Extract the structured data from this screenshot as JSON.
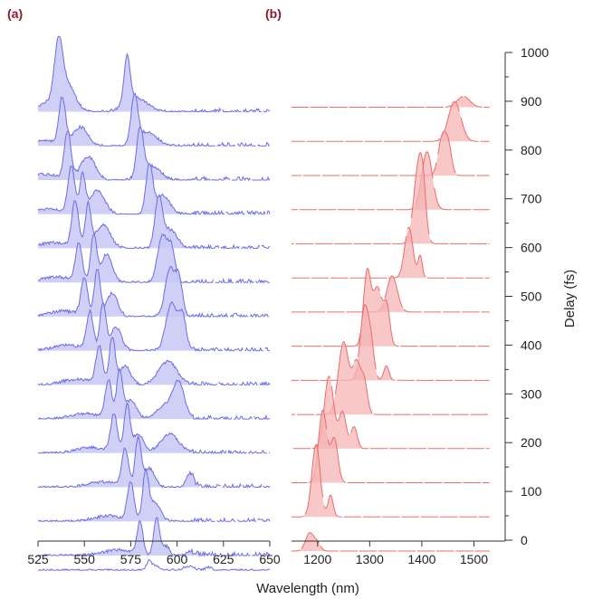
{
  "colors": {
    "panel_label": "#8b1a2b",
    "blue_line": "#6b6bea",
    "blue_fill": "#c8c8f4",
    "red_line": "#ec6b6b",
    "red_fill": "#f6b4b4",
    "axis": "#333333"
  },
  "panel_labels": {
    "a": "(a)",
    "b": "(b)"
  },
  "chart_data": [
    {
      "type": "area",
      "panel": "(a)",
      "title": "",
      "xlabel": "",
      "x_ticks": [
        "525",
        "550",
        "575",
        "600",
        "625",
        "650"
      ],
      "xlim": [
        525,
        650
      ],
      "delays_fs": [
        0,
        70,
        140,
        210,
        280,
        350,
        420,
        490,
        560,
        630,
        700,
        770,
        840,
        910
      ],
      "series": [
        {
          "delay": 910,
          "peaks": [
            [
              536,
              2.0,
              1.0
            ],
            [
              539,
              5.0,
              0.7
            ],
            [
              573,
              1.6,
              1.0
            ],
            [
              578,
              6.0,
              0.3
            ]
          ]
        },
        {
          "delay": 840,
          "peaks": [
            [
              538,
              1.8,
              1.0
            ],
            [
              548,
              4.0,
              0.4
            ],
            [
              577,
              1.8,
              1.0
            ],
            [
              584,
              5.0,
              0.3
            ]
          ]
        },
        {
          "delay": 770,
          "peaks": [
            [
              541,
              1.8,
              1.0
            ],
            [
              552,
              4.0,
              0.5
            ],
            [
              580,
              1.8,
              1.0
            ],
            [
              586,
              5.0,
              0.3
            ]
          ]
        },
        {
          "delay": 700,
          "peaks": [
            [
              543,
              1.8,
              1.0
            ],
            [
              549,
              1.5,
              0.8
            ],
            [
              557,
              4.0,
              0.5
            ],
            [
              585,
              1.8,
              1.0
            ],
            [
              592,
              4.0,
              0.4
            ]
          ]
        },
        {
          "delay": 630,
          "peaks": [
            [
              545,
              1.8,
              1.0
            ],
            [
              552,
              1.5,
              0.9
            ],
            [
              560,
              4.0,
              0.5
            ],
            [
              590,
              2.0,
              1.0
            ],
            [
              596,
              4.0,
              0.4
            ]
          ]
        },
        {
          "delay": 560,
          "peaks": [
            [
              547,
              1.8,
              0.8
            ],
            [
              555,
              1.6,
              1.0
            ],
            [
              562,
              3.0,
              0.6
            ],
            [
              592,
              2.5,
              1.0
            ],
            [
              597,
              2.0,
              0.7
            ]
          ]
        },
        {
          "delay": 490,
          "peaks": [
            [
              550,
              1.8,
              0.8
            ],
            [
              557,
              1.6,
              1.0
            ],
            [
              565,
              3.0,
              0.5
            ],
            [
              596,
              2.5,
              1.0
            ],
            [
              601,
              2.0,
              0.8
            ]
          ]
        },
        {
          "delay": 420,
          "peaks": [
            [
              553,
              1.8,
              0.8
            ],
            [
              560,
              1.6,
              1.0
            ],
            [
              567,
              3.0,
              0.5
            ],
            [
              597,
              3.0,
              1.0
            ],
            [
              603,
              2.0,
              0.7
            ]
          ]
        },
        {
          "delay": 350,
          "peaks": [
            [
              558,
              1.8,
              0.8
            ],
            [
              565,
              1.6,
              1.0
            ],
            [
              572,
              3.0,
              0.4
            ],
            [
              595,
              5.0,
              0.5
            ]
          ]
        },
        {
          "delay": 280,
          "peaks": [
            [
              563,
              1.8,
              0.8
            ],
            [
              569,
              1.6,
              1.0
            ],
            [
              575,
              3.0,
              0.4
            ],
            [
              601,
              3.0,
              0.7
            ],
            [
              594,
              5.0,
              0.3
            ]
          ]
        },
        {
          "delay": 210,
          "peaks": [
            [
              566,
              1.8,
              0.8
            ],
            [
              573,
              1.6,
              1.0
            ],
            [
              579,
              3.0,
              0.4
            ],
            [
              596,
              5.0,
              0.4
            ]
          ]
        },
        {
          "delay": 140,
          "peaks": [
            [
              572,
              1.8,
              0.8
            ],
            [
              579,
              1.6,
              1.0
            ],
            [
              585,
              3.0,
              0.4
            ],
            [
              607,
              2.0,
              0.3
            ]
          ]
        },
        {
          "delay": 70,
          "peaks": [
            [
              575,
              1.8,
              0.8
            ],
            [
              583,
              1.6,
              1.0
            ],
            [
              588,
              3.0,
              0.4
            ]
          ]
        },
        {
          "delay": 0,
          "peaks": [
            [
              580,
              1.6,
              0.7
            ],
            [
              589,
              1.6,
              0.8
            ],
            [
              594,
              2.0,
              0.2
            ],
            [
              608,
              3.0,
              0.1
            ]
          ]
        }
      ],
      "baseline_curve": {
        "delay": -30,
        "peaks": [
          [
            585,
            1.5,
            0.2
          ],
          [
            589,
            1.5,
            0.1
          ],
          [
            606,
            3.0,
            0.08
          ],
          [
            617,
            2.0,
            0.06
          ]
        ]
      }
    },
    {
      "type": "area",
      "panel": "(b)",
      "title": "",
      "xlabel": "Wavelength (nm)",
      "ylabel": "Delay (fs)",
      "x_ticks": [
        "1200",
        "1300",
        "1400",
        "1500"
      ],
      "xlim": [
        1150,
        1560
      ],
      "y_ticks": [
        "0",
        "100",
        "200",
        "300",
        "400",
        "500",
        "600",
        "700",
        "800",
        "900",
        "1000"
      ],
      "ylim": [
        0,
        1000
      ],
      "series": [
        {
          "delay": 910,
          "peaks": [
            [
              1480,
              12,
              0.15
            ]
          ]
        },
        {
          "delay": 840,
          "peaks": [
            [
              1463,
              12,
              0.55
            ]
          ]
        },
        {
          "delay": 770,
          "peaks": [
            [
              1440,
              8,
              0.55
            ],
            [
              1452,
              6,
              0.3
            ]
          ]
        },
        {
          "delay": 700,
          "peaks": [
            [
              1410,
              10,
              0.8
            ]
          ]
        },
        {
          "delay": 630,
          "peaks": [
            [
              1393,
              9,
              1.0
            ],
            [
              1402,
              6,
              0.5
            ]
          ]
        },
        {
          "delay": 560,
          "peaks": [
            [
              1375,
              8,
              0.7
            ],
            [
              1397,
              4,
              0.3
            ]
          ]
        },
        {
          "delay": 490,
          "peaks": [
            [
              1343,
              10,
              0.5
            ]
          ]
        },
        {
          "delay": 420,
          "peaks": [
            [
              1295,
              7,
              1.0
            ],
            [
              1315,
              9,
              0.8
            ],
            [
              1333,
              6,
              0.5
            ]
          ]
        },
        {
          "delay": 350,
          "peaks": [
            [
              1290,
              8,
              1.0
            ],
            [
              1303,
              6,
              0.4
            ],
            [
              1332,
              5,
              0.2
            ]
          ]
        },
        {
          "delay": 280,
          "peaks": [
            [
              1250,
              10,
              1.0
            ],
            [
              1275,
              8,
              0.7
            ],
            [
              1290,
              6,
              0.4
            ]
          ]
        },
        {
          "delay": 210,
          "peaks": [
            [
              1222,
              9,
              1.0
            ],
            [
              1248,
              7,
              0.5
            ],
            [
              1270,
              6,
              0.3
            ]
          ]
        },
        {
          "delay": 140,
          "peaks": [
            [
              1210,
              8,
              1.0
            ],
            [
              1232,
              7,
              0.6
            ]
          ]
        },
        {
          "delay": 70,
          "peaks": [
            [
              1197,
              8,
              1.0
            ],
            [
              1225,
              5,
              0.3
            ]
          ]
        },
        {
          "delay": 0,
          "peaks": [
            [
              1185,
              8,
              0.25
            ],
            [
              1200,
              6,
              0.1
            ]
          ]
        }
      ]
    }
  ]
}
